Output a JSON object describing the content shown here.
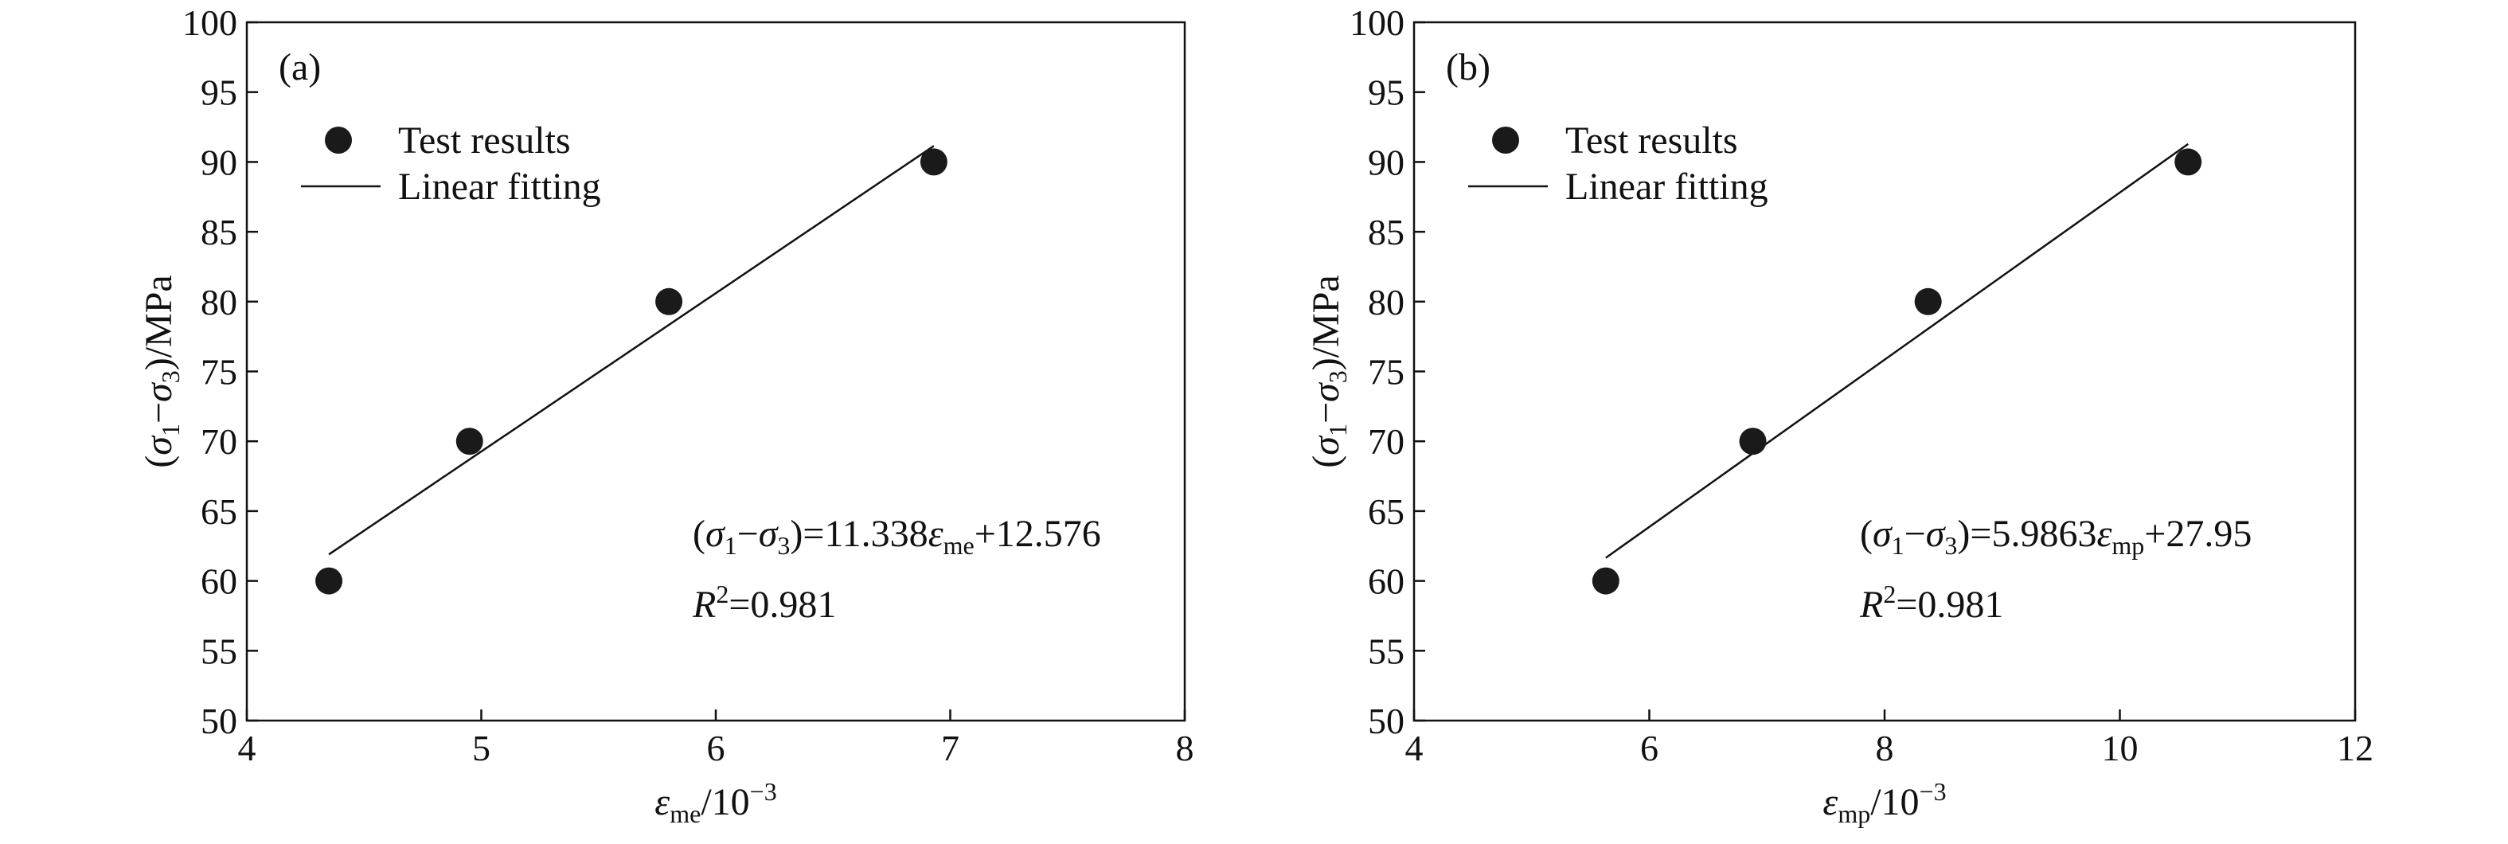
{
  "chart_data": [
    {
      "type": "scatter",
      "panel_label": "(a)",
      "xlim": [
        4,
        8
      ],
      "ylim": [
        50,
        100
      ],
      "xticks": [
        "4",
        "5",
        "6",
        "7",
        "8"
      ],
      "yticks": [
        "50",
        "55",
        "60",
        "65",
        "70",
        "75",
        "80",
        "85",
        "90",
        "95",
        "100"
      ],
      "xlabel": {
        "sym": "ε",
        "sub": "me",
        "rest": "/10",
        "sup": "−3"
      },
      "ylabel": {
        "p1": "(σ",
        "s1": "1",
        "p2": "−σ",
        "s2": "3",
        "p3": ")/MPa"
      },
      "legend": {
        "points": "Test results",
        "line": "Linear fitting",
        "position": "top-left"
      },
      "series": [
        {
          "name": "Test results",
          "x": [
            4.35,
            4.95,
            5.8,
            6.93
          ],
          "y": [
            60,
            70,
            80,
            90
          ]
        }
      ],
      "fit": {
        "name": "Linear fitting",
        "slope": 11.338,
        "intercept": 12.576,
        "x_range": [
          4.35,
          6.93
        ]
      },
      "equation": {
        "p1": "(σ",
        "s1": "1",
        "p2": "−σ",
        "s2": "3",
        "p3": ")=11.338",
        "sym": "ε",
        "sub": "me",
        "p4": "+12.576"
      },
      "r2": {
        "sym": "R",
        "sup": "2",
        "rest": "=0.981"
      }
    },
    {
      "type": "scatter",
      "panel_label": "(b)",
      "xlim": [
        4,
        12
      ],
      "ylim": [
        50,
        100
      ],
      "xticks": [
        "4",
        "6",
        "8",
        "10",
        "12"
      ],
      "yticks": [
        "50",
        "55",
        "60",
        "65",
        "70",
        "75",
        "80",
        "85",
        "90",
        "95",
        "100"
      ],
      "xlabel": {
        "sym": "ε",
        "sub": "mp",
        "rest": "/10",
        "sup": "−3"
      },
      "ylabel": {
        "p1": "(σ",
        "s1": "1",
        "p2": "−σ",
        "s2": "3",
        "p3": ")/MPa"
      },
      "legend": {
        "points": "Test results",
        "line": "Linear fitting",
        "position": "top-left"
      },
      "series": [
        {
          "name": "Test results",
          "x": [
            5.63,
            6.88,
            8.37,
            10.58
          ],
          "y": [
            60,
            70,
            80,
            90
          ]
        }
      ],
      "fit": {
        "name": "Linear fitting",
        "slope": 5.9863,
        "intercept": 27.95,
        "x_range": [
          5.63,
          10.58
        ]
      },
      "equation": {
        "p1": "(σ",
        "s1": "1",
        "p2": "−σ",
        "s2": "3",
        "p3": ")=5.9863",
        "sym": "ε",
        "sub": "mp",
        "p4": "+27.95"
      },
      "r2": {
        "sym": "R",
        "sup": "2",
        "rest": "=0.981"
      }
    }
  ]
}
